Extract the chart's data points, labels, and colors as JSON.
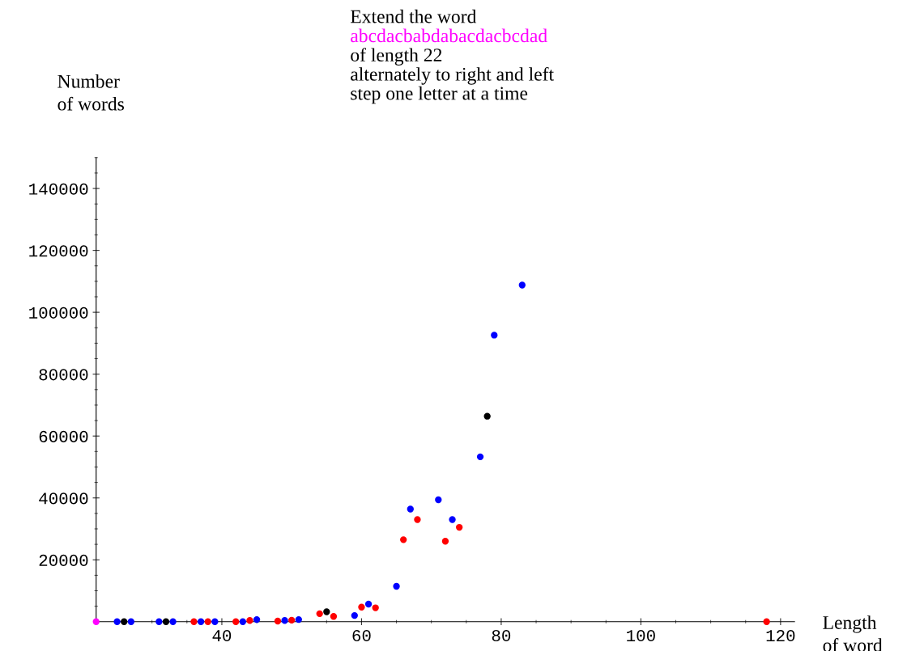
{
  "chart_data": {
    "type": "scatter",
    "title": "Extend the word",
    "subtitle": "abcdacbabdabacdacbcdad",
    "annotations": [
      "of length 22",
      "alternately to right and left",
      "step one letter at a time"
    ],
    "xlabel": "Length\nof word",
    "ylabel": "Number\nof words",
    "marker": "circle",
    "grid": false,
    "series": [
      {
        "color": "#ff00ff",
        "x": [
          22
        ],
        "values": [
          0
        ]
      },
      {
        "color": "#0000ff",
        "x": [
          25,
          27,
          31,
          33,
          37,
          39,
          43,
          45,
          49,
          51,
          59,
          61,
          65,
          67,
          71,
          73,
          77,
          79,
          83
        ],
        "values": [
          0,
          0,
          0,
          0,
          0,
          0,
          0,
          700,
          400,
          700,
          2000,
          5700,
          11450,
          36400,
          39400,
          33000,
          53300,
          92600,
          108800
        ]
      },
      {
        "color": "#000000",
        "x": [
          26,
          32,
          55,
          78
        ],
        "values": [
          0,
          0,
          3200,
          66400
        ]
      },
      {
        "color": "#ff0000",
        "x": [
          36,
          38,
          42,
          44,
          48,
          50,
          54,
          56,
          60,
          62,
          66,
          68,
          72,
          74,
          118
        ],
        "values": [
          0,
          0,
          0,
          400,
          200,
          500,
          2600,
          1700,
          4700,
          4500,
          26500,
          33000,
          26000,
          30500,
          0
        ]
      }
    ],
    "xlim": [
      22,
      122
    ],
    "xticks": [
      40,
      60,
      80,
      100,
      120
    ],
    "ylim": [
      0,
      150000
    ],
    "yticks": [
      20000,
      40000,
      60000,
      80000,
      100000,
      120000,
      140000
    ]
  }
}
